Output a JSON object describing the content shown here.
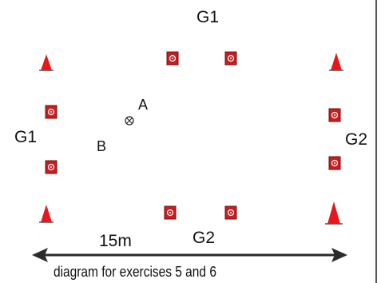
{
  "labels": {
    "g1_top": "G1",
    "g1_left": "G1",
    "g2_right": "G2",
    "g2_bottom": "G2",
    "player_a": "A",
    "player_b": "B",
    "distance": "15m",
    "caption": "diagram for exercises 5 and 6"
  },
  "colors": {
    "cone": "#e8171b",
    "marker": "#c71e20",
    "marker_dark": "#7a0c0c",
    "line": "#2b2b2b",
    "border": "#555555"
  },
  "icons": {
    "cone": "cone-icon",
    "marker": "goal-marker-icon",
    "ball": "ball-icon",
    "arrow": "double-arrow-icon"
  }
}
